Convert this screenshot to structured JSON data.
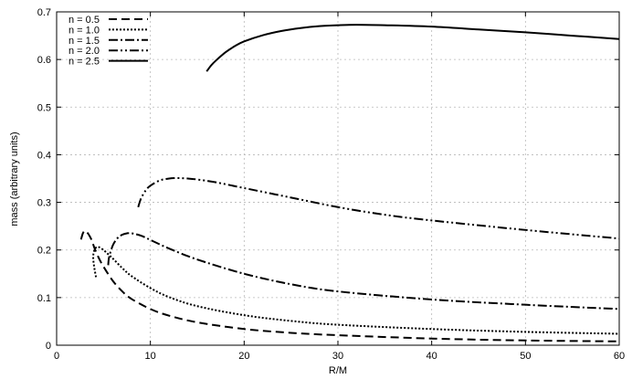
{
  "chart_data": {
    "type": "line",
    "title": "",
    "xlabel": "R/M",
    "ylabel": "mass (arbitrary units)",
    "xlim": [
      0,
      60
    ],
    "ylim": [
      0,
      0.7
    ],
    "xticks": [
      0,
      10,
      20,
      30,
      40,
      50,
      60
    ],
    "yticks": [
      0,
      0.1,
      0.2,
      0.3,
      0.4,
      0.5,
      0.6,
      0.7
    ],
    "xtick_labels": [
      "0",
      "10",
      "20",
      "30",
      "40",
      "50",
      "60"
    ],
    "ytick_labels": [
      "0",
      "0.1",
      "0.2",
      "0.3",
      "0.4",
      "0.5",
      "0.6",
      "0.7"
    ],
    "grid": true,
    "legend_position": "top-left",
    "series": [
      {
        "name": "n = 0.5",
        "dash": "dashed",
        "x": [
          2.6,
          2.8,
          3.0,
          3.2,
          3.5,
          3.8,
          4.0,
          4.5,
          5.0,
          6.0,
          7.0,
          8.0,
          10.0,
          12.0,
          15.0,
          20.0,
          25.0,
          30.0,
          40.0,
          50.0,
          60.0
        ],
        "y": [
          0.222,
          0.235,
          0.24,
          0.238,
          0.23,
          0.218,
          0.206,
          0.183,
          0.165,
          0.135,
          0.113,
          0.097,
          0.076,
          0.062,
          0.048,
          0.034,
          0.026,
          0.021,
          0.014,
          0.01,
          0.008
        ]
      },
      {
        "name": "n = 1.0",
        "dash": "dotted",
        "x": [
          4.2,
          4.0,
          3.9,
          4.0,
          4.2,
          4.5,
          5.0,
          5.5,
          6.0,
          7.0,
          8.0,
          10.0,
          12.0,
          15.0,
          20.0,
          25.0,
          30.0,
          40.0,
          50.0,
          60.0
        ],
        "y": [
          0.143,
          0.165,
          0.185,
          0.198,
          0.205,
          0.206,
          0.2,
          0.191,
          0.182,
          0.162,
          0.145,
          0.12,
          0.101,
          0.082,
          0.063,
          0.051,
          0.043,
          0.034,
          0.028,
          0.024
        ]
      },
      {
        "name": "n = 1.5",
        "dash": "dash-dot",
        "x": [
          5.5,
          5.6,
          6.0,
          6.5,
          7.0,
          7.5,
          8.0,
          9.0,
          10.0,
          12.0,
          15.0,
          20.0,
          25.0,
          30.0,
          40.0,
          50.0,
          60.0
        ],
        "y": [
          0.168,
          0.185,
          0.21,
          0.225,
          0.232,
          0.235,
          0.235,
          0.23,
          0.221,
          0.203,
          0.18,
          0.15,
          0.128,
          0.113,
          0.096,
          0.085,
          0.076
        ]
      },
      {
        "name": "n = 2.0",
        "dash": "dash-dot-dot",
        "x": [
          8.7,
          9.0,
          9.5,
          10.0,
          11.0,
          12.0,
          13.0,
          14.0,
          15.0,
          17.0,
          20.0,
          25.0,
          30.0,
          35.0,
          40.0,
          50.0,
          60.0
        ],
        "y": [
          0.29,
          0.308,
          0.325,
          0.335,
          0.346,
          0.35,
          0.351,
          0.35,
          0.348,
          0.342,
          0.33,
          0.31,
          0.29,
          0.274,
          0.262,
          0.242,
          0.224
        ]
      },
      {
        "name": "n = 2.5",
        "dash": "solid",
        "x": [
          16.0,
          16.5,
          17.0,
          18.0,
          19.0,
          20.0,
          22.0,
          24.0,
          26.0,
          28.0,
          30.0,
          32.0,
          35.0,
          40.0,
          45.0,
          50.0,
          55.0,
          60.0
        ],
        "y": [
          0.575,
          0.588,
          0.598,
          0.615,
          0.628,
          0.638,
          0.651,
          0.66,
          0.666,
          0.67,
          0.672,
          0.673,
          0.672,
          0.669,
          0.663,
          0.657,
          0.65,
          0.643
        ]
      }
    ]
  }
}
